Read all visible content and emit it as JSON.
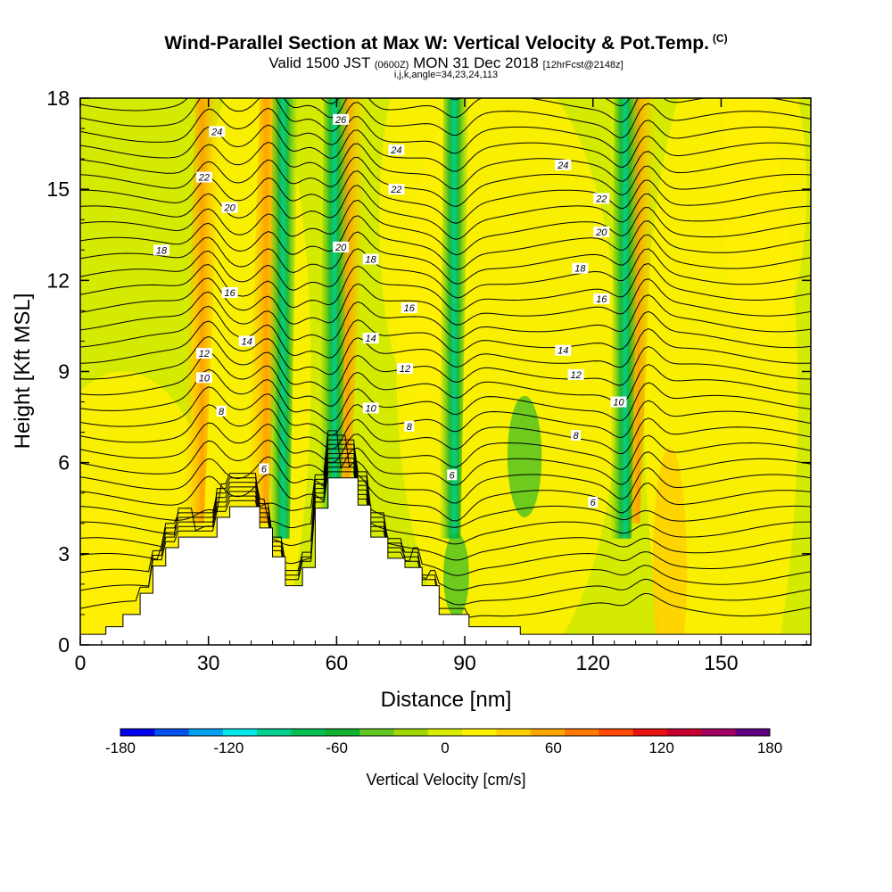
{
  "header": {
    "title": "Wind-Parallel Section at Max W: Vertical Velocity & Pot.Temp.",
    "copyright": "(C)",
    "valid_prefix": "Valid 1500 JST",
    "utc": "(0600Z)",
    "valid_date": "MON 31 Dec 2018",
    "forecast": "[12hrFcst@2148z]",
    "indices": "i,j,k,angle=34,23,24,113"
  },
  "chart_data": {
    "type": "heatmap",
    "title": "Wind-Parallel Section at Max W: Vertical Velocity & Pot.Temp.",
    "xlabel": "Distance [nm]",
    "ylabel": "Height [Kft MSL]",
    "xlim": [
      0,
      171
    ],
    "ylim": [
      0,
      18
    ],
    "x_ticks": [
      "0",
      "30",
      "60",
      "90",
      "120",
      "150"
    ],
    "y_ticks": [
      "0",
      "3",
      "6",
      "9",
      "12",
      "15",
      "18"
    ],
    "colorbar": {
      "label": "Vertical Velocity [cm/s]",
      "range": [
        -180,
        180
      ],
      "tick_labels": [
        "-180",
        "-120",
        "-60",
        "0",
        "60",
        "120",
        "180"
      ],
      "colors": [
        "#0000f0",
        "#0050f0",
        "#00a0f0",
        "#00e8e8",
        "#00d090",
        "#00c050",
        "#10b030",
        "#60c820",
        "#a0d800",
        "#d8ec00",
        "#fff000",
        "#ffd000",
        "#ffa800",
        "#ff7800",
        "#ff4800",
        "#e81010",
        "#c80030",
        "#a00060",
        "#600080"
      ]
    },
    "terrain_kft": [
      [
        0,
        0.35
      ],
      [
        6,
        0.35
      ],
      [
        6,
        0.6
      ],
      [
        10,
        0.6
      ],
      [
        10,
        1.0
      ],
      [
        14,
        1.0
      ],
      [
        14,
        1.7
      ],
      [
        17,
        1.7
      ],
      [
        17,
        2.6
      ],
      [
        20,
        2.6
      ],
      [
        20,
        3.2
      ],
      [
        23,
        3.2
      ],
      [
        23,
        3.55
      ],
      [
        32,
        3.55
      ],
      [
        32,
        4.2
      ],
      [
        35,
        4.2
      ],
      [
        35,
        4.55
      ],
      [
        42,
        4.55
      ],
      [
        42,
        3.85
      ],
      [
        45,
        3.85
      ],
      [
        45,
        2.9
      ],
      [
        48,
        2.9
      ],
      [
        48,
        1.95
      ],
      [
        52,
        1.95
      ],
      [
        52,
        2.55
      ],
      [
        55,
        2.55
      ],
      [
        55,
        4.5
      ],
      [
        58,
        4.5
      ],
      [
        58,
        5.5
      ],
      [
        65,
        5.5
      ],
      [
        65,
        4.6
      ],
      [
        68,
        4.6
      ],
      [
        68,
        3.55
      ],
      [
        72,
        3.55
      ],
      [
        72,
        2.85
      ],
      [
        76,
        2.85
      ],
      [
        76,
        2.55
      ],
      [
        80,
        2.55
      ],
      [
        80,
        1.95
      ],
      [
        84,
        1.95
      ],
      [
        84,
        1.0
      ],
      [
        91,
        1.0
      ],
      [
        91,
        0.6
      ],
      [
        103,
        0.6
      ],
      [
        103,
        0.35
      ],
      [
        171,
        0.35
      ]
    ],
    "updraft_bands_nm": [
      30,
      45,
      64,
      132
    ],
    "downdraft_bands_nm": [
      48,
      60,
      88,
      128
    ],
    "contour_label_values": [
      "26",
      "24",
      "24",
      "24",
      "22",
      "22",
      "22",
      "20",
      "20",
      "20",
      "18",
      "18",
      "18",
      "16",
      "16",
      "16",
      "14",
      "14",
      "14",
      "12",
      "12",
      "12",
      "10",
      "10",
      "10",
      "8",
      "8",
      "8",
      "6",
      "6",
      "6"
    ],
    "contour_labels": [
      {
        "text": "26",
        "x": 61,
        "y": 17.3
      },
      {
        "text": "24",
        "x": 32,
        "y": 16.9
      },
      {
        "text": "24",
        "x": 74,
        "y": 16.3
      },
      {
        "text": "24",
        "x": 113,
        "y": 15.8
      },
      {
        "text": "22",
        "x": 29,
        "y": 15.4
      },
      {
        "text": "22",
        "x": 74,
        "y": 15.0
      },
      {
        "text": "22",
        "x": 122,
        "y": 14.7
      },
      {
        "text": "20",
        "x": 35,
        "y": 14.4
      },
      {
        "text": "20",
        "x": 61,
        "y": 13.1
      },
      {
        "text": "20",
        "x": 122,
        "y": 13.6
      },
      {
        "text": "18",
        "x": 19,
        "y": 13.0
      },
      {
        "text": "18",
        "x": 68,
        "y": 12.7
      },
      {
        "text": "18",
        "x": 117,
        "y": 12.4
      },
      {
        "text": "16",
        "x": 35,
        "y": 11.6
      },
      {
        "text": "16",
        "x": 77,
        "y": 11.1
      },
      {
        "text": "16",
        "x": 122,
        "y": 11.4
      },
      {
        "text": "14",
        "x": 39,
        "y": 10.0
      },
      {
        "text": "14",
        "x": 68,
        "y": 10.1
      },
      {
        "text": "14",
        "x": 113,
        "y": 9.7
      },
      {
        "text": "12",
        "x": 29,
        "y": 9.6
      },
      {
        "text": "12",
        "x": 76,
        "y": 9.1
      },
      {
        "text": "12",
        "x": 116,
        "y": 8.9
      },
      {
        "text": "10",
        "x": 29,
        "y": 8.8
      },
      {
        "text": "10",
        "x": 68,
        "y": 7.8
      },
      {
        "text": "10",
        "x": 126,
        "y": 8.0
      },
      {
        "text": "8",
        "x": 33,
        "y": 7.7
      },
      {
        "text": "8",
        "x": 77,
        "y": 7.2
      },
      {
        "text": "8",
        "x": 116,
        "y": 6.9
      },
      {
        "text": "6",
        "x": 43,
        "y": 5.8
      },
      {
        "text": "6",
        "x": 87,
        "y": 5.6
      },
      {
        "text": "6",
        "x": 120,
        "y": 4.7
      }
    ]
  }
}
